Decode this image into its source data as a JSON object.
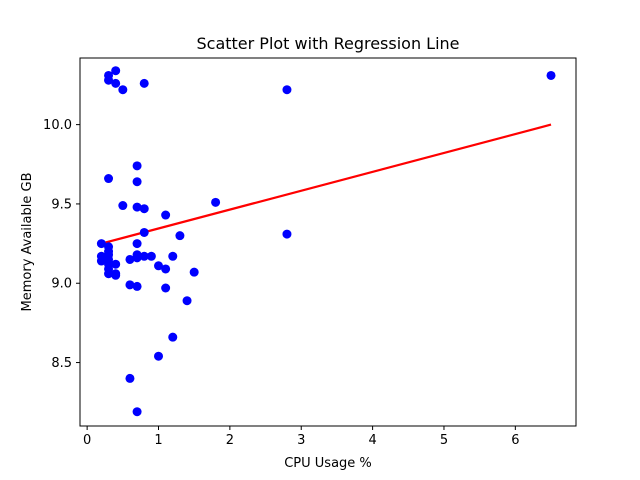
{
  "chart_data": {
    "type": "scatter",
    "title": "Scatter Plot with Regression Line",
    "xlabel": "CPU Usage %",
    "ylabel": "Memory Available GB",
    "xlim": [
      -0.1,
      6.85
    ],
    "ylim": [
      8.1,
      10.42
    ],
    "xticks": [
      0,
      1,
      2,
      3,
      4,
      5,
      6
    ],
    "yticks": [
      8.5,
      9.0,
      9.5,
      10.0
    ],
    "ytick_labels": [
      "8.5",
      "9.0",
      "9.5",
      "10.0"
    ],
    "grid": false,
    "point_color": "#0000ff",
    "line_color": "#ff0000",
    "points": [
      [
        0.3,
        10.31
      ],
      [
        0.3,
        10.28
      ],
      [
        0.4,
        10.34
      ],
      [
        0.4,
        10.26
      ],
      [
        0.5,
        10.22
      ],
      [
        0.8,
        10.26
      ],
      [
        2.8,
        10.22
      ],
      [
        6.5,
        10.31
      ],
      [
        0.7,
        9.74
      ],
      [
        0.3,
        9.66
      ],
      [
        0.7,
        9.64
      ],
      [
        0.5,
        9.49
      ],
      [
        0.7,
        9.48
      ],
      [
        0.8,
        9.47
      ],
      [
        1.1,
        9.43
      ],
      [
        1.8,
        9.51
      ],
      [
        0.8,
        9.32
      ],
      [
        1.3,
        9.3
      ],
      [
        2.8,
        9.31
      ],
      [
        0.2,
        9.25
      ],
      [
        0.3,
        9.23
      ],
      [
        0.7,
        9.25
      ],
      [
        0.3,
        9.2
      ],
      [
        0.3,
        9.18
      ],
      [
        0.2,
        9.17
      ],
      [
        0.2,
        9.14
      ],
      [
        0.3,
        9.15
      ],
      [
        0.7,
        9.18
      ],
      [
        0.8,
        9.17
      ],
      [
        0.9,
        9.17
      ],
      [
        1.2,
        9.17
      ],
      [
        0.6,
        9.15
      ],
      [
        0.7,
        9.16
      ],
      [
        0.3,
        9.12
      ],
      [
        0.4,
        9.12
      ],
      [
        0.3,
        9.09
      ],
      [
        0.3,
        9.06
      ],
      [
        0.4,
        9.06
      ],
      [
        0.4,
        9.05
      ],
      [
        1.0,
        9.11
      ],
      [
        1.1,
        9.09
      ],
      [
        1.5,
        9.07
      ],
      [
        0.6,
        8.99
      ],
      [
        0.7,
        8.98
      ],
      [
        1.1,
        8.97
      ],
      [
        1.4,
        8.89
      ],
      [
        1.2,
        8.66
      ],
      [
        1.0,
        8.54
      ],
      [
        0.6,
        8.4
      ],
      [
        0.7,
        8.19
      ]
    ],
    "regression_line": {
      "x": [
        0.2,
        6.5
      ],
      "y": [
        9.25,
        10.0
      ]
    }
  }
}
